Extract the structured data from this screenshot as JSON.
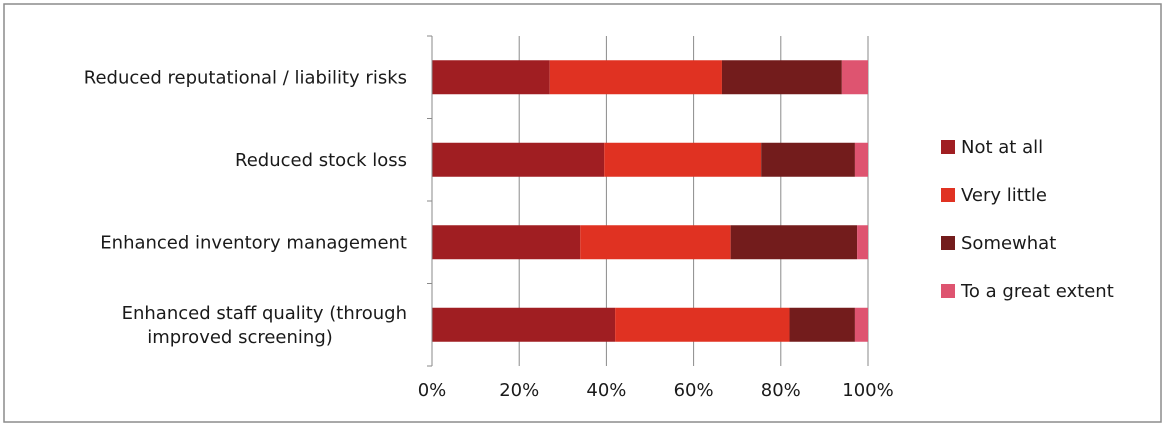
{
  "chart_data": {
    "type": "bar",
    "orientation": "horizontal",
    "stacked": "percent",
    "categories": [
      [
        "Reduced reputational / liability risks"
      ],
      [
        "Reduced stock loss"
      ],
      [
        "Enhanced inventory management"
      ],
      [
        "Enhanced staff quality (through",
        "improved screening)"
      ]
    ],
    "series": [
      {
        "name": "Not at all",
        "color": "#a01e22",
        "values": [
          27,
          39.5,
          34,
          42
        ]
      },
      {
        "name": "Very little",
        "color": "#e03222",
        "values": [
          39.5,
          36,
          34.5,
          40
        ]
      },
      {
        "name": "Somewhat",
        "color": "#731c1c",
        "values": [
          27.5,
          21.5,
          29,
          15
        ]
      },
      {
        "name": "To a great extent",
        "color": "#de5470",
        "values": [
          6,
          3,
          2.5,
          3
        ]
      }
    ],
    "xlim": [
      0,
      100
    ],
    "xticks": [
      "0%",
      "20%",
      "40%",
      "60%",
      "80%",
      "100%"
    ],
    "grid": true,
    "legend_position": "right",
    "title": "",
    "xlabel": "",
    "ylabel": ""
  }
}
